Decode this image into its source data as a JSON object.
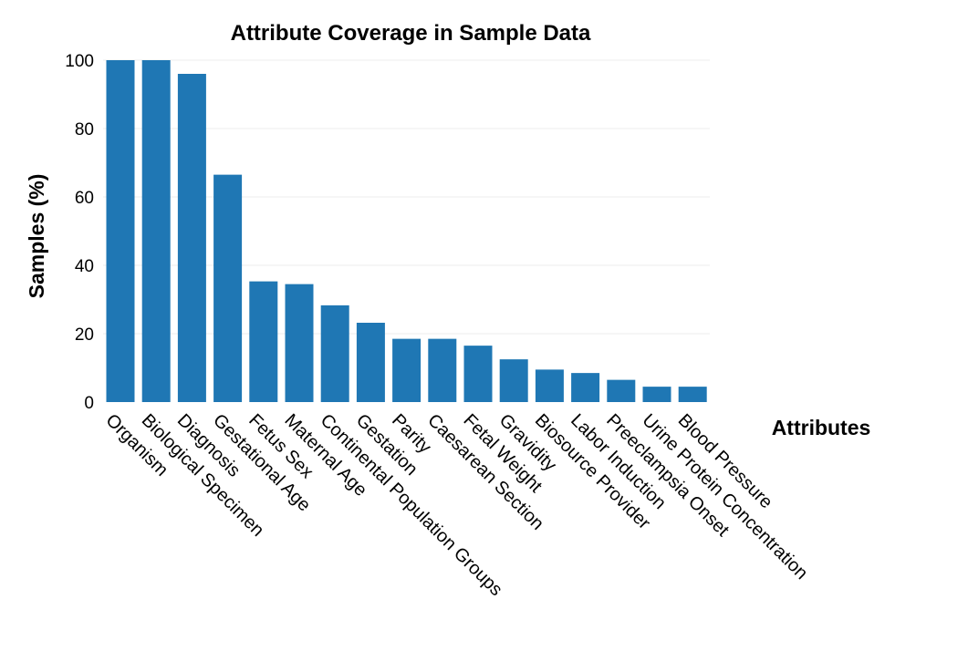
{
  "chart_data": {
    "type": "bar",
    "title": "Attribute Coverage in Sample Data",
    "xlabel": "Attributes",
    "ylabel": "Samples (%)",
    "ylim": [
      0,
      100
    ],
    "yticks": [
      0,
      20,
      40,
      60,
      80,
      100
    ],
    "grid": true,
    "bar_color": "#1f77b4",
    "categories": [
      "Organism",
      "Biological Specimen",
      "Diagnosis",
      "Gestational Age",
      "Fetus Sex",
      "Maternal Age",
      "Continental Population Groups",
      "Gestation",
      "Parity",
      "Caesarean Section",
      "Fetal Weight",
      "Gravidity",
      "Biosource Provider",
      "Labor Induction",
      "Preeclampsia Onset",
      "Urine Protein Concentration",
      "Blood Pressure"
    ],
    "values": [
      100,
      100,
      96,
      66.5,
      35.3,
      34.5,
      28.3,
      23.2,
      18.5,
      18.5,
      16.5,
      12.5,
      9.5,
      8.5,
      6.5,
      4.5,
      4.5
    ]
  }
}
